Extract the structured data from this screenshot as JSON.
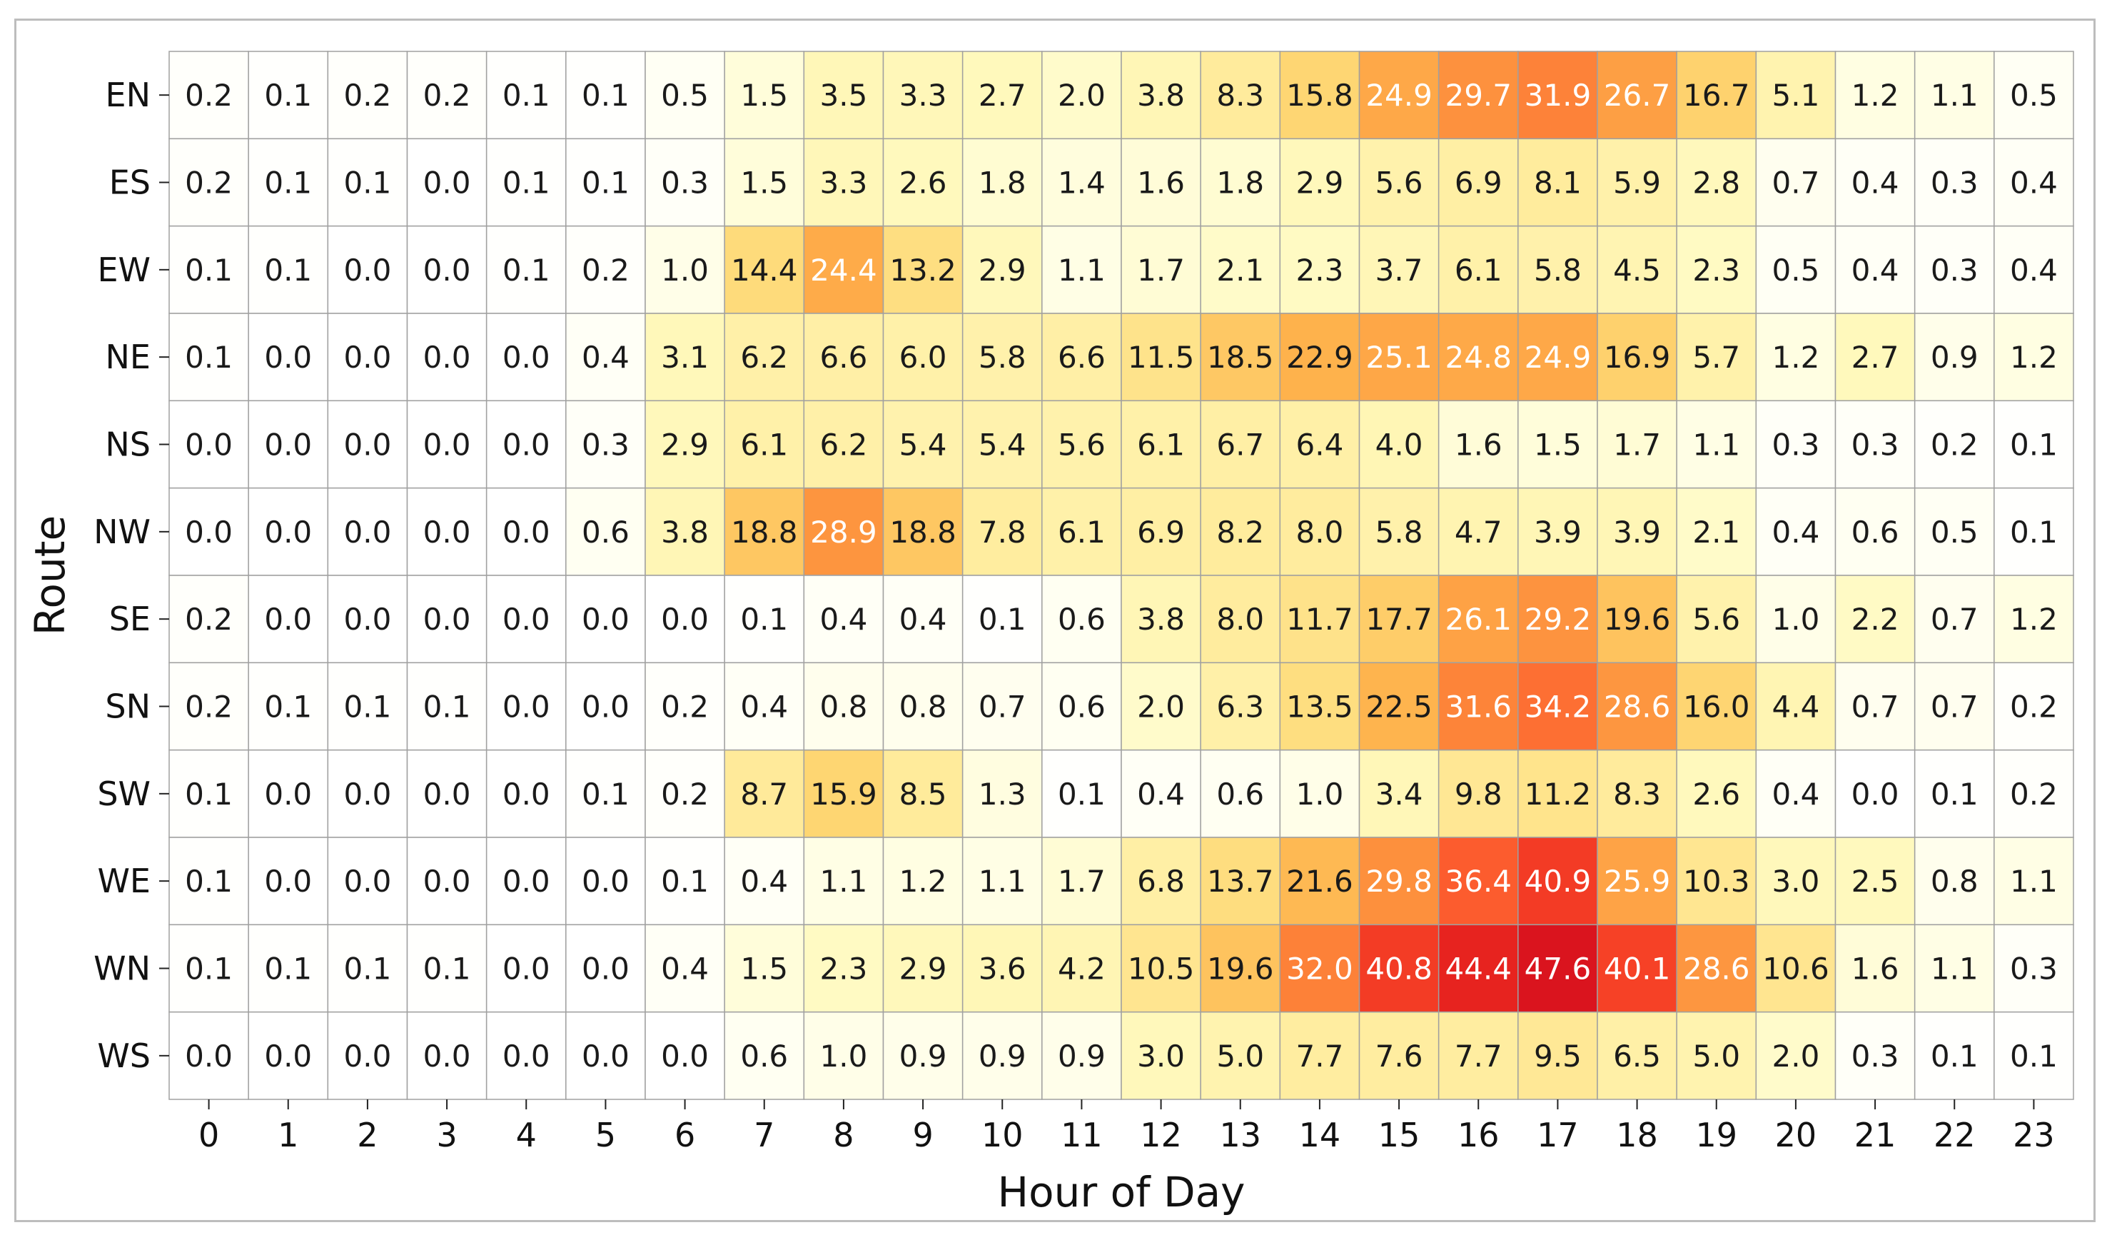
{
  "chart_data": {
    "type": "heatmap",
    "title": "",
    "xlabel": "Hour of Day",
    "ylabel": "Route",
    "x": [
      "0",
      "1",
      "2",
      "3",
      "4",
      "5",
      "6",
      "7",
      "8",
      "9",
      "10",
      "11",
      "12",
      "13",
      "14",
      "15",
      "16",
      "17",
      "18",
      "19",
      "20",
      "21",
      "22",
      "23"
    ],
    "y": [
      "EN",
      "ES",
      "EW",
      "NE",
      "NS",
      "NW",
      "SE",
      "SN",
      "SW",
      "WE",
      "WN",
      "WS"
    ],
    "values": [
      [
        0.2,
        0.1,
        0.2,
        0.2,
        0.1,
        0.1,
        0.5,
        1.5,
        3.5,
        3.3,
        2.7,
        2.0,
        3.8,
        8.3,
        15.8,
        24.9,
        29.7,
        31.9,
        26.7,
        16.7,
        5.1,
        1.2,
        1.1,
        0.5
      ],
      [
        0.2,
        0.1,
        0.1,
        0.0,
        0.1,
        0.1,
        0.3,
        1.5,
        3.3,
        2.6,
        1.8,
        1.4,
        1.6,
        1.8,
        2.9,
        5.6,
        6.9,
        8.1,
        5.9,
        2.8,
        0.7,
        0.4,
        0.3,
        0.4
      ],
      [
        0.1,
        0.1,
        0.0,
        0.0,
        0.1,
        0.2,
        1.0,
        14.4,
        24.4,
        13.2,
        2.9,
        1.1,
        1.7,
        2.1,
        2.3,
        3.7,
        6.1,
        5.8,
        4.5,
        2.3,
        0.5,
        0.4,
        0.3,
        0.4
      ],
      [
        0.1,
        0.0,
        0.0,
        0.0,
        0.0,
        0.4,
        3.1,
        6.2,
        6.6,
        6.0,
        5.8,
        6.6,
        11.5,
        18.5,
        22.9,
        25.1,
        24.8,
        24.9,
        16.9,
        5.7,
        1.2,
        2.7,
        0.9,
        1.2
      ],
      [
        0.0,
        0.0,
        0.0,
        0.0,
        0.0,
        0.3,
        2.9,
        6.1,
        6.2,
        5.4,
        5.4,
        5.6,
        6.1,
        6.7,
        6.4,
        4.0,
        1.6,
        1.5,
        1.7,
        1.1,
        0.3,
        0.3,
        0.2,
        0.1
      ],
      [
        0.0,
        0.0,
        0.0,
        0.0,
        0.0,
        0.6,
        3.8,
        18.8,
        28.9,
        18.8,
        7.8,
        6.1,
        6.9,
        8.2,
        8.0,
        5.8,
        4.7,
        3.9,
        3.9,
        2.1,
        0.4,
        0.6,
        0.5,
        0.1
      ],
      [
        0.2,
        0.0,
        0.0,
        0.0,
        0.0,
        0.0,
        0.0,
        0.1,
        0.4,
        0.4,
        0.1,
        0.6,
        3.8,
        8.0,
        11.7,
        17.7,
        26.1,
        29.2,
        19.6,
        5.6,
        1.0,
        2.2,
        0.7,
        1.2
      ],
      [
        0.2,
        0.1,
        0.1,
        0.1,
        0.0,
        0.0,
        0.2,
        0.4,
        0.8,
        0.8,
        0.7,
        0.6,
        2.0,
        6.3,
        13.5,
        22.5,
        31.6,
        34.2,
        28.6,
        16.0,
        4.4,
        0.7,
        0.7,
        0.2
      ],
      [
        0.1,
        0.0,
        0.0,
        0.0,
        0.0,
        0.1,
        0.2,
        8.7,
        15.9,
        8.5,
        1.3,
        0.1,
        0.4,
        0.6,
        1.0,
        3.4,
        9.8,
        11.2,
        8.3,
        2.6,
        0.4,
        0.0,
        0.1,
        0.2
      ],
      [
        0.1,
        0.0,
        0.0,
        0.0,
        0.0,
        0.0,
        0.1,
        0.4,
        1.1,
        1.2,
        1.1,
        1.7,
        6.8,
        13.7,
        21.6,
        29.8,
        36.4,
        40.9,
        25.9,
        10.3,
        3.0,
        2.5,
        0.8,
        1.1
      ],
      [
        0.1,
        0.1,
        0.1,
        0.1,
        0.0,
        0.0,
        0.4,
        1.5,
        2.3,
        2.9,
        3.6,
        4.2,
        10.5,
        19.6,
        32.0,
        40.8,
        44.4,
        47.6,
        40.1,
        28.6,
        10.6,
        1.6,
        1.1,
        0.3
      ],
      [
        0.0,
        0.0,
        0.0,
        0.0,
        0.0,
        0.0,
        0.0,
        0.6,
        1.0,
        0.9,
        0.9,
        0.9,
        3.0,
        5.0,
        7.7,
        7.6,
        7.7,
        9.5,
        6.5,
        5.0,
        2.0,
        0.3,
        0.1,
        0.1
      ]
    ],
    "value_format": "one decimal",
    "colormap": "YlOrRd",
    "color_range": [
      0,
      47.6
    ],
    "colorbar": false,
    "grid": true
  },
  "colors": {
    "cell_border": "#a0a0a0",
    "frame_border": "#bdbdbd",
    "text_dark": "#1a1a1a",
    "text_light": "#ffffff"
  }
}
